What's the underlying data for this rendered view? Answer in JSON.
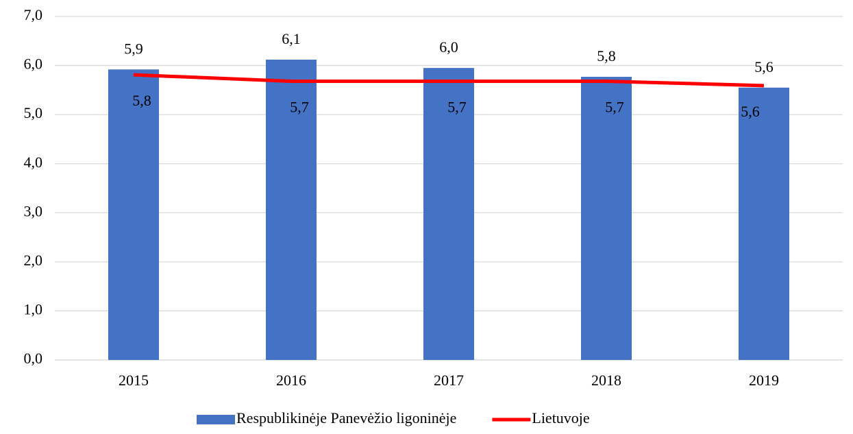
{
  "chart_data": {
    "type": "bar_line",
    "categories": [
      "2015",
      "2016",
      "2017",
      "2018",
      "2019"
    ],
    "series": [
      {
        "name": "Respublikinėje Panevėžio ligoninėje",
        "type": "bar",
        "color": "#4472c4",
        "values": [
          5.92,
          6.12,
          5.95,
          5.77,
          5.55
        ],
        "value_labels": [
          "5,9",
          "6,1",
          "6,0",
          "5,8",
          "5,6"
        ]
      },
      {
        "name": "Lietuvoje",
        "type": "line",
        "color": "#ff0000",
        "values": [
          5.81,
          5.68,
          5.68,
          5.68,
          5.59
        ],
        "value_labels": [
          "5,8",
          "5,7",
          "5,7",
          "5,7",
          "5,6"
        ]
      }
    ],
    "ylim": [
      0,
      7
    ],
    "yticks": [
      {
        "value": 0,
        "label": "0,0"
      },
      {
        "value": 1,
        "label": "1,0"
      },
      {
        "value": 2,
        "label": "2,0"
      },
      {
        "value": 3,
        "label": "3,0"
      },
      {
        "value": 4,
        "label": "4,0"
      },
      {
        "value": 5,
        "label": "5,0"
      },
      {
        "value": 6,
        "label": "6,0"
      },
      {
        "value": 7,
        "label": "7,0"
      }
    ],
    "grid": true,
    "legend": "bottom"
  }
}
